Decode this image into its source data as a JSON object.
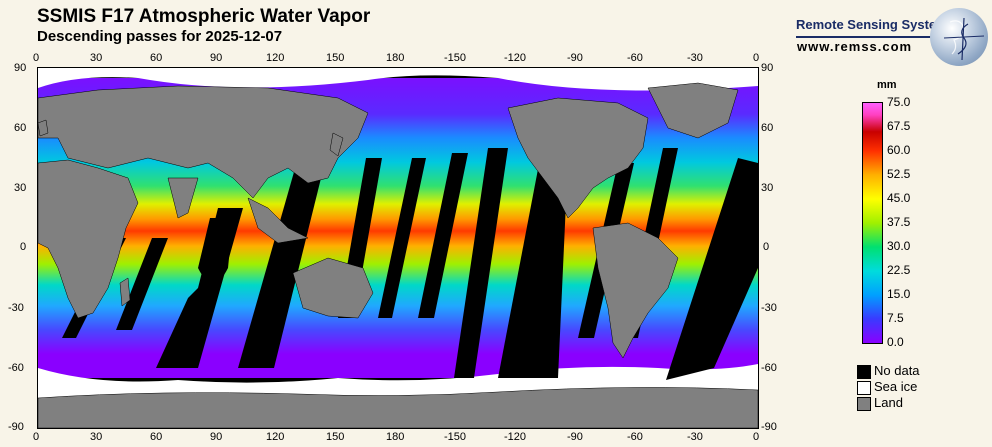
{
  "header": {
    "title": "SSMIS F17 Atmospheric Water Vapor",
    "subtitle": "Descending passes for 2025-12-07"
  },
  "brand": {
    "name": "Remote Sensing Systems",
    "url": "www.remss.com"
  },
  "axes": {
    "lon_ticks": [
      "0",
      "30",
      "60",
      "90",
      "120",
      "150",
      "180",
      "-150",
      "-120",
      "-90",
      "-60",
      "-30",
      "0"
    ],
    "lat_ticks": [
      "90",
      "60",
      "30",
      "0",
      "-30",
      "-60",
      "-90"
    ]
  },
  "colorbar": {
    "unit": "mm",
    "labels": [
      "75.0",
      "67.5",
      "60.0",
      "52.5",
      "45.0",
      "37.5",
      "30.0",
      "22.5",
      "15.0",
      "7.5",
      "0.0"
    ],
    "min": 0,
    "max": 75
  },
  "legend": [
    {
      "label": "No data",
      "color": "#000000"
    },
    {
      "label": "Sea ice",
      "color": "#ffffff"
    },
    {
      "label": "Land",
      "color": "#808080"
    }
  ],
  "colors": {
    "land": "#808080",
    "no_data": "#000000",
    "sea_ice": "#ffffff",
    "background": "#f8f4e8"
  }
}
